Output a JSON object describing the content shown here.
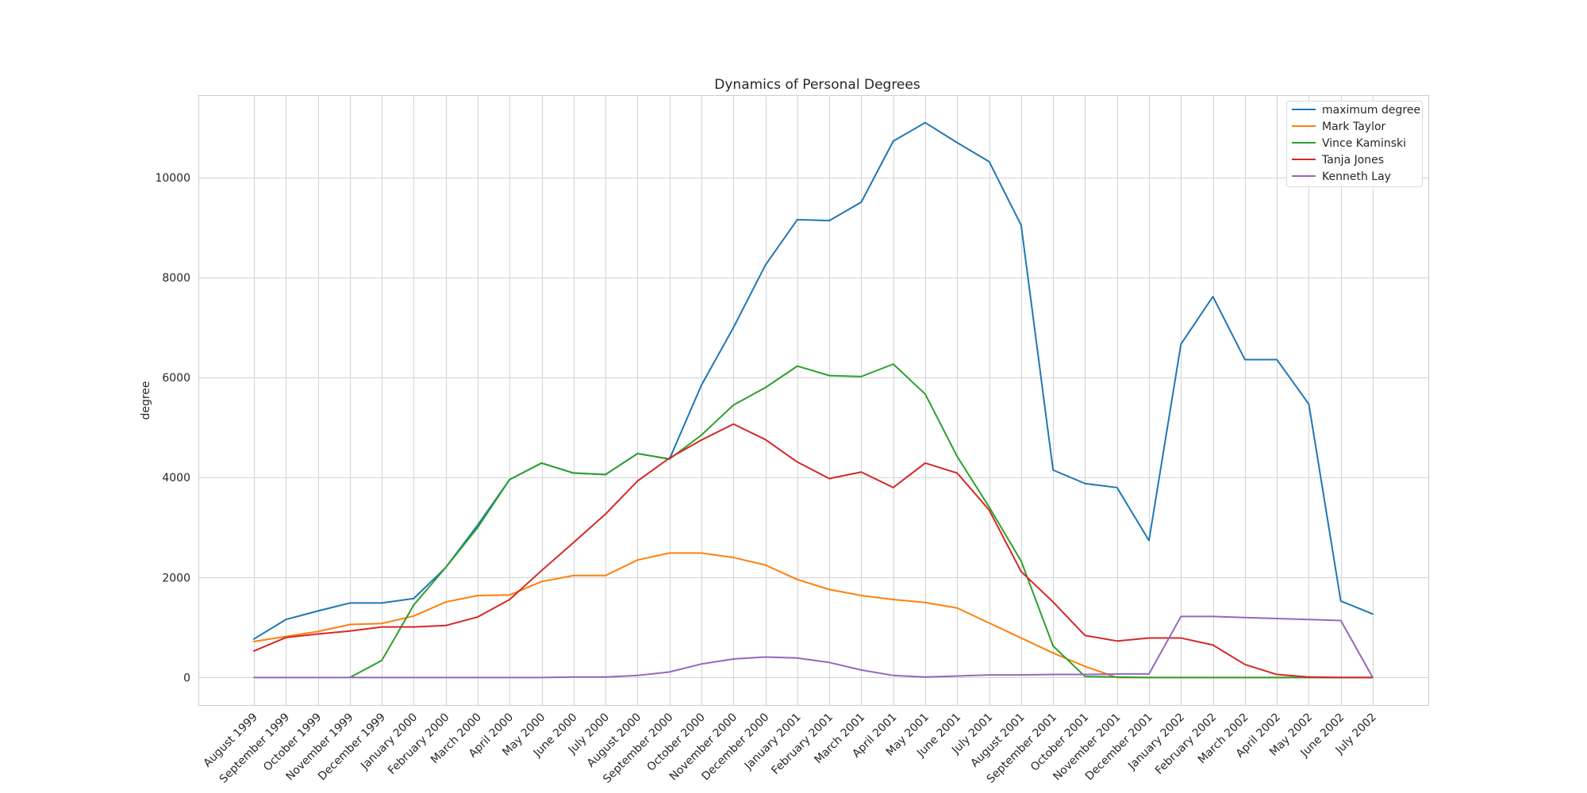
{
  "chart_data": {
    "type": "line",
    "title": "Dynamics of Personal Degrees",
    "xlabel": "",
    "ylabel": "degree",
    "ylim": [
      -550,
      11650
    ],
    "yticks": [
      0,
      2000,
      4000,
      6000,
      8000,
      10000
    ],
    "grid": true,
    "legend_position": "top-right",
    "categories": [
      "August 1999",
      "September 1999",
      "October 1999",
      "November 1999",
      "December 1999",
      "January 2000",
      "February 2000",
      "March 2000",
      "April 2000",
      "May 2000",
      "June 2000",
      "July 2000",
      "August 2000",
      "September 2000",
      "October 2000",
      "November 2000",
      "December 2000",
      "January 2001",
      "February 2001",
      "March 2001",
      "April 2001",
      "May 2001",
      "June 2001",
      "July 2001",
      "August 2001",
      "September 2001",
      "October 2001",
      "November 2001",
      "December 2001",
      "January 2002",
      "February 2002",
      "March 2002",
      "April 2002",
      "May 2002",
      "June 2002",
      "July 2002"
    ],
    "series": [
      {
        "name": "maximum degree",
        "color": "#1f77b4",
        "values": [
          770,
          1160,
          1330,
          1490,
          1490,
          1580,
          2200,
          3050,
          3960,
          4290,
          4090,
          4060,
          4480,
          4370,
          5850,
          7000,
          8250,
          9160,
          9140,
          9510,
          10730,
          11100,
          10700,
          10320,
          9050,
          4150,
          3880,
          3800,
          2740,
          6670,
          7620,
          6360,
          6360,
          5470,
          1530,
          1270
        ]
      },
      {
        "name": "Mark Taylor",
        "color": "#ff7f0e",
        "values": [
          720,
          820,
          920,
          1060,
          1080,
          1230,
          1510,
          1640,
          1650,
          1920,
          2040,
          2040,
          2350,
          2490,
          2490,
          2400,
          2250,
          1960,
          1760,
          1640,
          1560,
          1500,
          1390,
          1090,
          790,
          490,
          220,
          0,
          0,
          0,
          0,
          0,
          0,
          0,
          0,
          0
        ]
      },
      {
        "name": "Vince Kaminski",
        "color": "#2ca02c",
        "values": [
          null,
          null,
          null,
          0,
          340,
          1450,
          2200,
          3000,
          3960,
          4290,
          4090,
          4060,
          4480,
          4370,
          4850,
          5450,
          5800,
          6230,
          6040,
          6020,
          6270,
          5670,
          4420,
          3410,
          2330,
          630,
          20,
          10,
          0,
          0,
          0,
          0,
          0,
          0,
          0,
          0
        ]
      },
      {
        "name": "Tanja Jones",
        "color": "#d62728",
        "values": [
          530,
          800,
          870,
          930,
          1010,
          1010,
          1040,
          1210,
          1560,
          2140,
          2700,
          3270,
          3930,
          4390,
          4750,
          5070,
          4760,
          4310,
          3980,
          4110,
          3800,
          4290,
          4090,
          3350,
          2120,
          1510,
          840,
          730,
          790,
          790,
          650,
          260,
          60,
          10,
          0,
          0
        ]
      },
      {
        "name": "Kenneth Lay",
        "color": "#9467bd",
        "values": [
          0,
          0,
          0,
          0,
          0,
          0,
          0,
          0,
          0,
          0,
          10,
          10,
          40,
          110,
          270,
          370,
          410,
          390,
          300,
          150,
          40,
          10,
          30,
          50,
          50,
          60,
          60,
          70,
          70,
          1220,
          1220,
          1200,
          1180,
          1160,
          1140,
          0
        ]
      }
    ]
  }
}
